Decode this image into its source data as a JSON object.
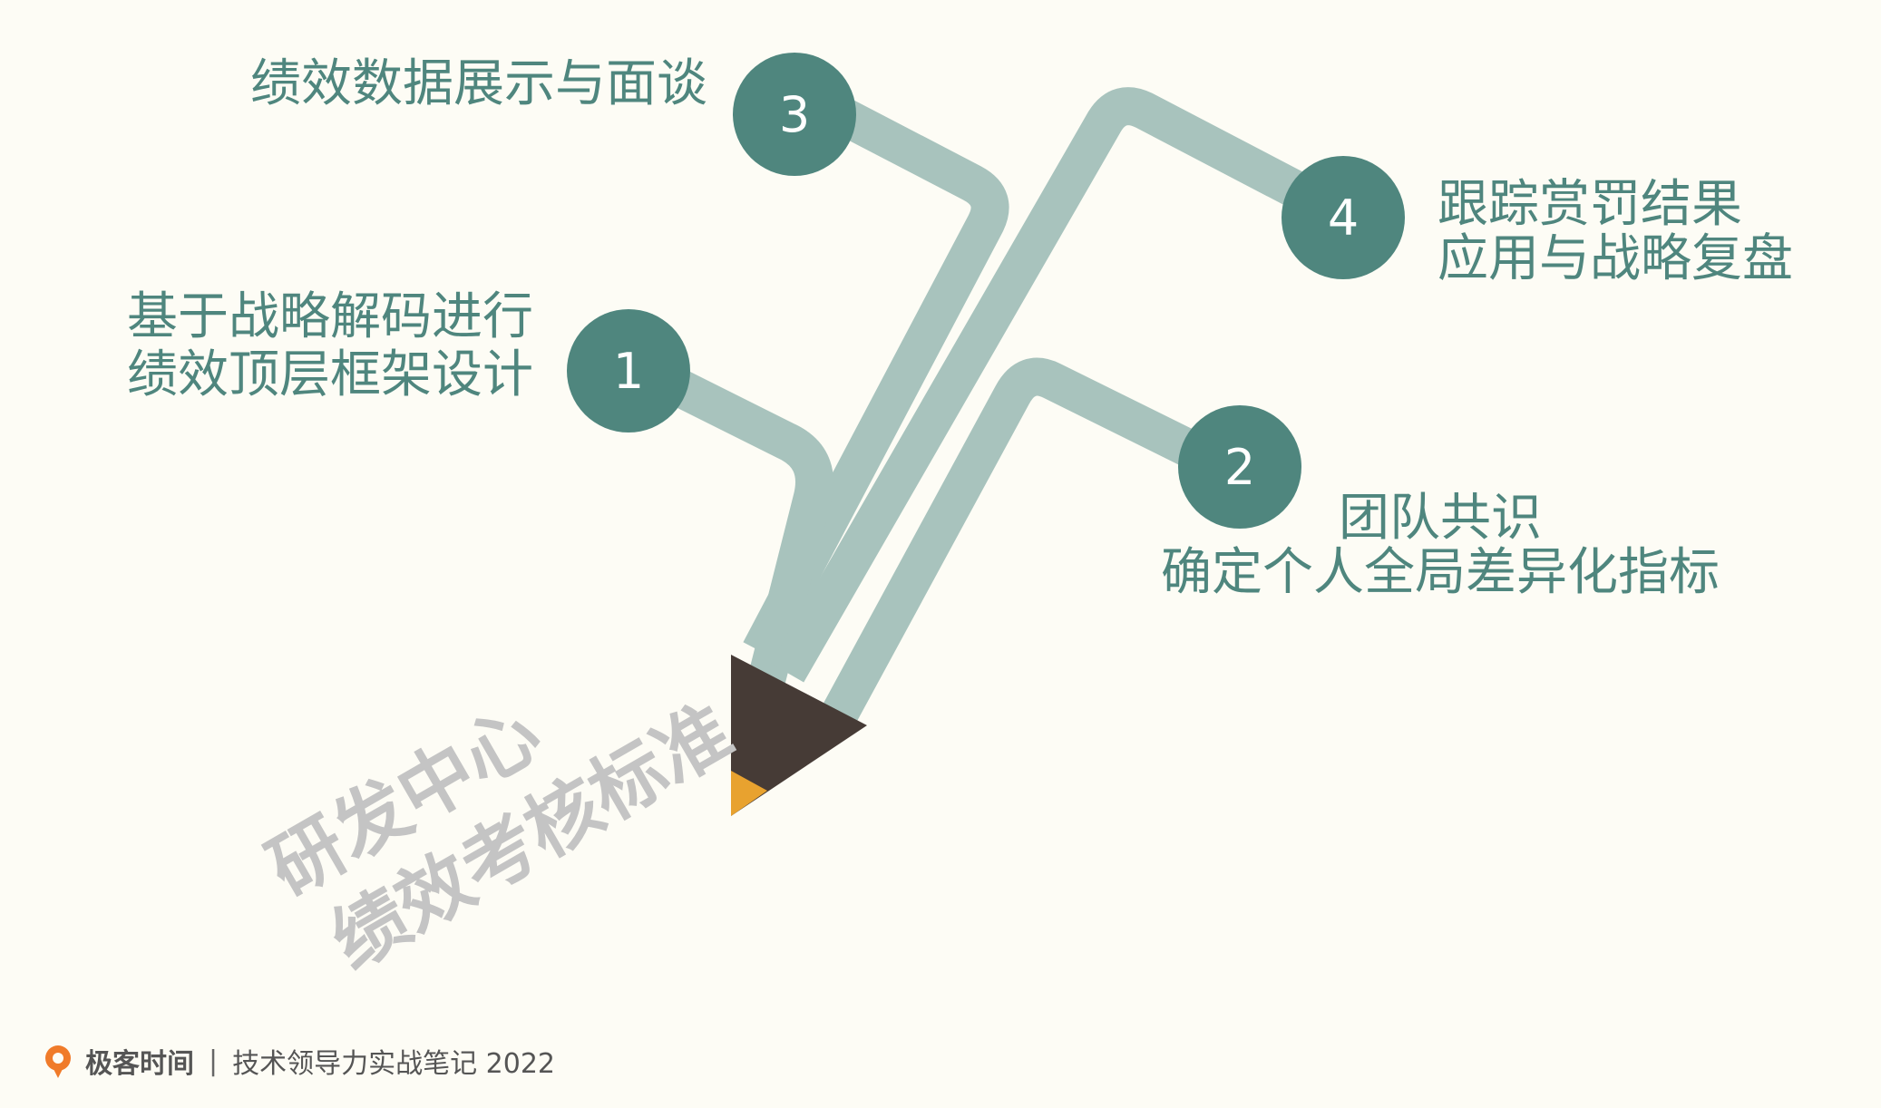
{
  "colors": {
    "background": "#fdfcf5",
    "node_fill": "#4f867e",
    "branch": "#a8c3bd",
    "pencil_tip": "#463b36",
    "pencil_lead": "#e8a22f",
    "label_text": "#4f867e",
    "watermark_text": "#c4c4c4"
  },
  "nodes": [
    {
      "number": "1",
      "lines": [
        "基于战略解码进行",
        "绩效顶层框架设计"
      ]
    },
    {
      "number": "2",
      "lines": [
        "团队共识",
        "确定个人全局差异化指标"
      ]
    },
    {
      "number": "3",
      "lines": [
        "绩效数据展示与面谈"
      ]
    },
    {
      "number": "4",
      "lines": [
        "跟踪赏罚结果",
        "应用与战略复盘"
      ]
    }
  ],
  "watermark": {
    "lines": [
      "研发中心",
      "绩效考核标准"
    ]
  },
  "footer": {
    "logo_icon": "geektime-logo-icon",
    "brand": "极客时间",
    "separator": "|",
    "note": "技术领导力实战笔记 2022"
  }
}
